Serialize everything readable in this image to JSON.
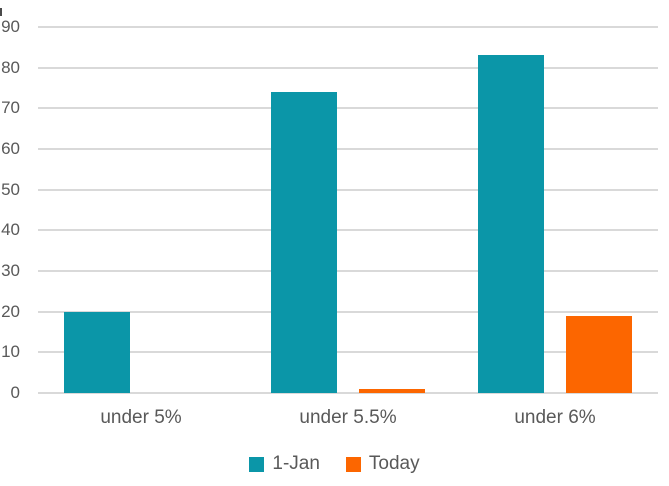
{
  "chart_data": {
    "type": "bar",
    "title": "",
    "categories": [
      "under 5%",
      "under 5.5%",
      "under 6%"
    ],
    "series": [
      {
        "name": "1-Jan",
        "color": "#0B96A8",
        "values": [
          20,
          74,
          83
        ]
      },
      {
        "name": "Today",
        "color": "#FC6600",
        "values": [
          0,
          1,
          19
        ]
      }
    ],
    "xlabel": "",
    "ylabel": "",
    "ylim": [
      0,
      90
    ],
    "yticks": [
      0,
      10,
      20,
      30,
      40,
      50,
      60,
      70,
      80,
      90
    ],
    "grid": true,
    "gridline_color": "#D9D9D9",
    "label_color": "#595959",
    "background_color": "#FFFFFF",
    "legend_position": "bottom"
  }
}
